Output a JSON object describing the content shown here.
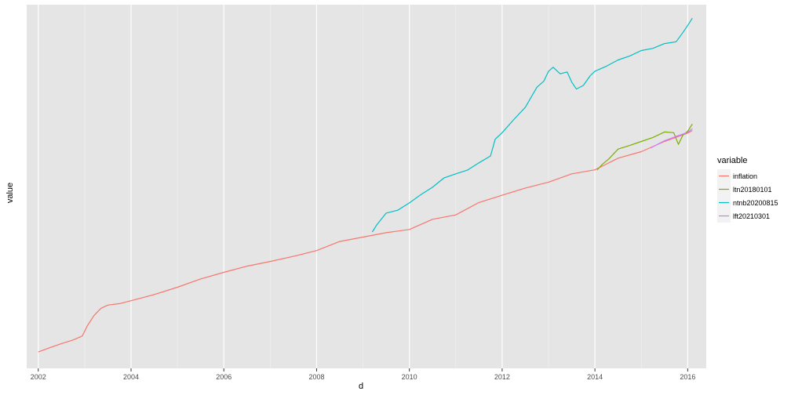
{
  "chart_data": {
    "type": "line",
    "title": "",
    "xlabel": "d",
    "ylabel": "value",
    "xlim": [
      2001.75,
      2016.4
    ],
    "ylim": [
      0,
      100
    ],
    "x_ticks": [
      2002,
      2004,
      2006,
      2008,
      2010,
      2012,
      2014,
      2016
    ],
    "y_tick_labels_shown": false,
    "grid": true,
    "background": "#e5e5e5",
    "legend": {
      "title": "variable",
      "position": "right"
    },
    "series": [
      {
        "name": "inflation",
        "color": "#F8766D",
        "points": [
          [
            2002.0,
            4.5
          ],
          [
            2002.25,
            5.7
          ],
          [
            2002.5,
            6.8
          ],
          [
            2002.75,
            7.8
          ],
          [
            2002.95,
            8.9
          ],
          [
            2003.05,
            11.5
          ],
          [
            2003.2,
            14.5
          ],
          [
            2003.35,
            16.5
          ],
          [
            2003.5,
            17.4
          ],
          [
            2003.75,
            17.8
          ],
          [
            2004.0,
            18.6
          ],
          [
            2004.5,
            20.3
          ],
          [
            2005.0,
            22.3
          ],
          [
            2005.5,
            24.6
          ],
          [
            2006.0,
            26.4
          ],
          [
            2006.5,
            28.1
          ],
          [
            2007.0,
            29.4
          ],
          [
            2007.5,
            30.8
          ],
          [
            2008.0,
            32.4
          ],
          [
            2008.5,
            34.9
          ],
          [
            2009.0,
            36.1
          ],
          [
            2009.5,
            37.3
          ],
          [
            2010.0,
            38.2
          ],
          [
            2010.5,
            41.0
          ],
          [
            2011.0,
            42.2
          ],
          [
            2011.5,
            45.6
          ],
          [
            2012.0,
            47.6
          ],
          [
            2012.5,
            49.6
          ],
          [
            2013.0,
            51.2
          ],
          [
            2013.5,
            53.5
          ],
          [
            2014.0,
            54.6
          ],
          [
            2014.5,
            57.8
          ],
          [
            2015.0,
            59.6
          ],
          [
            2015.5,
            62.4
          ],
          [
            2016.0,
            64.7
          ],
          [
            2016.1,
            65.4
          ]
        ]
      },
      {
        "name": "ltn20180101",
        "color": "#7CAE00",
        "points": [
          [
            2014.05,
            54.6
          ],
          [
            2014.15,
            56.0
          ],
          [
            2014.3,
            57.6
          ],
          [
            2014.5,
            60.3
          ],
          [
            2014.75,
            61.3
          ],
          [
            2015.0,
            62.4
          ],
          [
            2015.25,
            63.5
          ],
          [
            2015.5,
            65.0
          ],
          [
            2015.7,
            64.8
          ],
          [
            2015.8,
            61.6
          ],
          [
            2015.9,
            64.2
          ],
          [
            2016.0,
            65.2
          ],
          [
            2016.1,
            67.2
          ]
        ]
      },
      {
        "name": "ntnb20200815",
        "color": "#00BFC4",
        "points": [
          [
            2009.2,
            37.5
          ],
          [
            2009.3,
            39.5
          ],
          [
            2009.5,
            42.7
          ],
          [
            2009.75,
            43.5
          ],
          [
            2010.0,
            45.5
          ],
          [
            2010.25,
            47.8
          ],
          [
            2010.5,
            49.8
          ],
          [
            2010.75,
            52.4
          ],
          [
            2011.0,
            53.5
          ],
          [
            2011.25,
            54.5
          ],
          [
            2011.5,
            56.5
          ],
          [
            2011.75,
            58.4
          ],
          [
            2011.85,
            63.0
          ],
          [
            2012.0,
            64.8
          ],
          [
            2012.25,
            68.4
          ],
          [
            2012.5,
            71.8
          ],
          [
            2012.75,
            77.3
          ],
          [
            2012.9,
            79.0
          ],
          [
            2013.0,
            81.7
          ],
          [
            2013.1,
            82.8
          ],
          [
            2013.25,
            81.0
          ],
          [
            2013.4,
            81.5
          ],
          [
            2013.5,
            78.7
          ],
          [
            2013.6,
            76.8
          ],
          [
            2013.75,
            77.8
          ],
          [
            2013.9,
            80.5
          ],
          [
            2014.0,
            81.7
          ],
          [
            2014.25,
            83.1
          ],
          [
            2014.5,
            84.8
          ],
          [
            2014.75,
            85.9
          ],
          [
            2015.0,
            87.4
          ],
          [
            2015.25,
            88.0
          ],
          [
            2015.5,
            89.3
          ],
          [
            2015.75,
            89.8
          ],
          [
            2015.9,
            92.4
          ],
          [
            2016.0,
            94.3
          ],
          [
            2016.1,
            96.3
          ]
        ]
      },
      {
        "name": "lft20210301",
        "color": "#C77CFF",
        "points": [
          [
            2015.2,
            60.6
          ],
          [
            2015.5,
            62.6
          ],
          [
            2015.75,
            63.8
          ],
          [
            2016.0,
            64.9
          ],
          [
            2016.1,
            65.9
          ]
        ]
      }
    ]
  }
}
